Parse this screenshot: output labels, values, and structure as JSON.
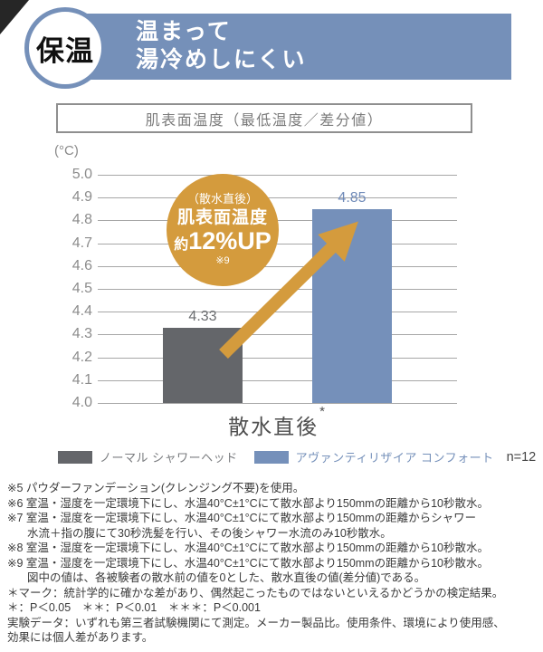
{
  "header": {
    "badge": "保温",
    "title_line1": "温まって",
    "title_line2": "湯冷めしにくい",
    "banner_color": "#7590b9"
  },
  "chart": {
    "box_title": "肌表面温度（最低温度／差分値）",
    "unit": "(°C)",
    "xlabel": "散水直後",
    "significance_mark": "*",
    "value_labels": [
      "4.33",
      "4.85"
    ]
  },
  "callout": {
    "line1": "（散水直後）",
    "line2": "肌表面温度",
    "prefix": "約",
    "value": "12%UP",
    "note": "※9",
    "color": "#d49b3d"
  },
  "legend": {
    "items": [
      {
        "label": "ノーマル シャワーヘッド",
        "color": "#64666a"
      },
      {
        "label": "アヴァンティリザイア コンフォート",
        "color": "#7590ba"
      }
    ],
    "n_label": "n=12"
  },
  "chart_data": {
    "type": "bar",
    "title": "肌表面温度（最低温度／差分値）",
    "ylabel": "(°C)",
    "ylim": [
      4.0,
      5.0
    ],
    "ytick_step": 0.1,
    "categories": [
      "散水直後"
    ],
    "series": [
      {
        "name": "ノーマル シャワーヘッド",
        "values": [
          4.33
        ],
        "color": "#64666a"
      },
      {
        "name": "アヴァンティリザイア コンフォート",
        "values": [
          4.85
        ],
        "color": "#7590ba"
      }
    ],
    "annotation": "（散水直後）肌表面温度 約12%UP ※9",
    "n": 12,
    "grid": true,
    "legend_position": "bottom",
    "significance": "*"
  },
  "footnotes": {
    "lines": [
      {
        "text": "※5 パウダーファンデーション(クレンジング不要)を使用。",
        "indent": false
      },
      {
        "text": "※6 室温・湿度を一定環境下にし、水温40°C±1°Cにて散水部より150mmの距離から10秒散水。",
        "indent": false
      },
      {
        "text": "※7 室温・湿度を一定環境下にし、水温40°C±1°Cにて散水部より150mmの距離からシャワー",
        "indent": false
      },
      {
        "text": "水流＋指の腹にて30秒洗髪を行い、その後シャワー水流のみ10秒散水。",
        "indent": true
      },
      {
        "text": "※8 室温・湿度を一定環境下にし、水温40°C±1°Cにて散水部より150mmの距離から10秒散水。",
        "indent": false
      },
      {
        "text": "※9 室温・湿度を一定環境下にし、水温40°C±1°Cにて散水部より150mmの距離から10秒散水。",
        "indent": false
      },
      {
        "text": "図中の値は、各被験者の散水前の値を0とした、散水直後の値(差分値)である。",
        "indent": true
      },
      {
        "text": "＊マーク：統計学的に確かな差があり、偶然起こったものではないといえるかどうかの検定結果。",
        "indent": false
      },
      {
        "text": "＊：P＜0.05　＊＊：P＜0.01　＊＊＊：P＜0.001",
        "indent": false
      },
      {
        "text": "実験データ：いずれも第三者試験機関にて測定。メーカー製品比。使用条件、環境により使用感、",
        "indent": false
      },
      {
        "text": "効果には個人差があります。",
        "indent": false
      }
    ]
  }
}
